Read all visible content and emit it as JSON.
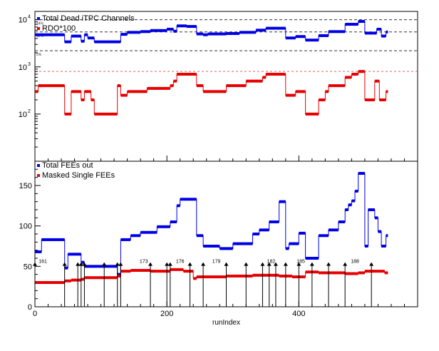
{
  "chart_data": [
    {
      "type": "line",
      "log_y": true,
      "xlim": [
        0,
        580
      ],
      "ylim": [
        10,
        15000
      ],
      "x_tick_labels": [],
      "y_tick_labels": [
        "10",
        "10",
        "10"
      ],
      "y_tick_exponents": [
        "2",
        "3",
        "4"
      ],
      "y_tick_values": [
        100,
        1000,
        10000
      ],
      "ref_lines": [
        {
          "value": 10000,
          "label": "24%",
          "color": "#333333",
          "dash": "4,3"
        },
        {
          "value": 5500,
          "label": "12%",
          "color": "#333333",
          "dash": "4,3"
        },
        {
          "value": 2200,
          "label": "5%",
          "color": "#333333",
          "dash": "4,3"
        },
        {
          "value": 800,
          "label": "",
          "color": "#e06060",
          "dash": "3,3"
        }
      ],
      "legend": [
        "Total Dead iTPC Channels",
        "RDO*100"
      ],
      "series": [
        {
          "name": "Total Dead iTPC Channels",
          "color": "#0000e6",
          "steps": [
            [
              0,
              4800
            ],
            [
              45,
              3400
            ],
            [
              55,
              4500
            ],
            [
              70,
              3500
            ],
            [
              75,
              4800
            ],
            [
              80,
              4100
            ],
            [
              90,
              3400
            ],
            [
              130,
              4900
            ],
            [
              140,
              5400
            ],
            [
              160,
              5600
            ],
            [
              175,
              5900
            ],
            [
              200,
              6300
            ],
            [
              210,
              5700
            ],
            [
              215,
              7400
            ],
            [
              230,
              7200
            ],
            [
              245,
              5000
            ],
            [
              255,
              4800
            ],
            [
              262,
              5000
            ],
            [
              290,
              5100
            ],
            [
              310,
              5400
            ],
            [
              335,
              6000
            ],
            [
              350,
              6600
            ],
            [
              380,
              4100
            ],
            [
              395,
              4400
            ],
            [
              410,
              3700
            ],
            [
              430,
              4600
            ],
            [
              445,
              5600
            ],
            [
              470,
              8000
            ],
            [
              490,
              9200
            ],
            [
              500,
              5200
            ],
            [
              518,
              6300
            ],
            [
              525,
              4500
            ],
            [
              532,
              5500
            ]
          ],
          "end": 535
        },
        {
          "name": "RDO*100",
          "color": "#e60000",
          "steps": [
            [
              0,
              300
            ],
            [
              5,
              400
            ],
            [
              45,
              100
            ],
            [
              55,
              300
            ],
            [
              70,
              200
            ],
            [
              75,
              300
            ],
            [
              85,
              200
            ],
            [
              90,
              100
            ],
            [
              125,
              400
            ],
            [
              130,
              250
            ],
            [
              140,
              300
            ],
            [
              170,
              350
            ],
            [
              205,
              400
            ],
            [
              210,
              500
            ],
            [
              215,
              700
            ],
            [
              245,
              400
            ],
            [
              255,
              300
            ],
            [
              290,
              400
            ],
            [
              320,
              500
            ],
            [
              345,
              600
            ],
            [
              350,
              700
            ],
            [
              380,
              250
            ],
            [
              395,
              300
            ],
            [
              410,
              100
            ],
            [
              430,
              200
            ],
            [
              440,
              300
            ],
            [
              445,
              400
            ],
            [
              470,
              600
            ],
            [
              480,
              700
            ],
            [
              490,
              800
            ],
            [
              500,
              200
            ],
            [
              515,
              500
            ],
            [
              522,
              200
            ],
            [
              532,
              300
            ]
          ],
          "end": 535
        }
      ]
    },
    {
      "type": "line",
      "xlim": [
        0,
        580
      ],
      "ylim": [
        0,
        180
      ],
      "xlabel": "runIndex",
      "x_ticks": [
        0,
        200,
        400
      ],
      "x_tick_labels": [
        "0",
        "200",
        "400"
      ],
      "y_ticks": [
        0,
        50,
        100,
        150
      ],
      "y_tick_labels": [
        "0",
        "50",
        "100",
        "150"
      ],
      "legend": [
        "Total FEEs out",
        "Masked Single FEEs"
      ],
      "series": [
        {
          "name": "Total FEEs out",
          "color": "#0000e6",
          "steps": [
            [
              0,
              68
            ],
            [
              10,
              83
            ],
            [
              45,
              48
            ],
            [
              50,
              65
            ],
            [
              70,
              55
            ],
            [
              75,
              50
            ],
            [
              125,
              40
            ],
            [
              130,
              83
            ],
            [
              145,
              88
            ],
            [
              160,
              92
            ],
            [
              185,
              99
            ],
            [
              205,
              105
            ],
            [
              215,
              125
            ],
            [
              220,
              133
            ],
            [
              245,
              88
            ],
            [
              255,
              75
            ],
            [
              280,
              72
            ],
            [
              300,
              78
            ],
            [
              330,
              90
            ],
            [
              340,
              95
            ],
            [
              355,
              105
            ],
            [
              370,
              130
            ],
            [
              380,
              72
            ],
            [
              385,
              78
            ],
            [
              400,
              91
            ],
            [
              410,
              60
            ],
            [
              430,
              88
            ],
            [
              445,
              95
            ],
            [
              460,
              105
            ],
            [
              470,
              120
            ],
            [
              475,
              126
            ],
            [
              480,
              131
            ],
            [
              485,
              143
            ],
            [
              490,
              165
            ],
            [
              500,
              75
            ],
            [
              505,
              120
            ],
            [
              515,
              110
            ],
            [
              520,
              93
            ],
            [
              525,
              75
            ],
            [
              532,
              88
            ]
          ],
          "end": 535
        },
        {
          "name": "Masked Single FEEs",
          "color": "#e60000",
          "steps": [
            [
              0,
              30
            ],
            [
              45,
              32
            ],
            [
              55,
              33
            ],
            [
              70,
              34
            ],
            [
              75,
              36
            ],
            [
              125,
              38
            ],
            [
              130,
              44
            ],
            [
              145,
              45
            ],
            [
              175,
              44
            ],
            [
              205,
              46
            ],
            [
              225,
              44
            ],
            [
              240,
              35
            ],
            [
              245,
              37
            ],
            [
              290,
              38
            ],
            [
              330,
              39
            ],
            [
              370,
              38
            ],
            [
              390,
              37
            ],
            [
              410,
              43
            ],
            [
              430,
              42
            ],
            [
              470,
              41
            ],
            [
              490,
              42
            ],
            [
              500,
              44
            ],
            [
              530,
              42
            ]
          ],
          "end": 535
        }
      ],
      "arrows": [
        0,
        45,
        65,
        70,
        75,
        105,
        125,
        130,
        175,
        200,
        205,
        235,
        255,
        290,
        320,
        345,
        355,
        365,
        380,
        400,
        420,
        445,
        470,
        510
      ],
      "arrow_labels": [
        {
          "x": 12,
          "text": "161"
        },
        {
          "x": 165,
          "text": "173"
        },
        {
          "x": 220,
          "text": "176"
        },
        {
          "x": 275,
          "text": "179"
        },
        {
          "x": 358,
          "text": "182"
        },
        {
          "x": 403,
          "text": "185"
        },
        {
          "x": 485,
          "text": "188"
        }
      ]
    }
  ]
}
